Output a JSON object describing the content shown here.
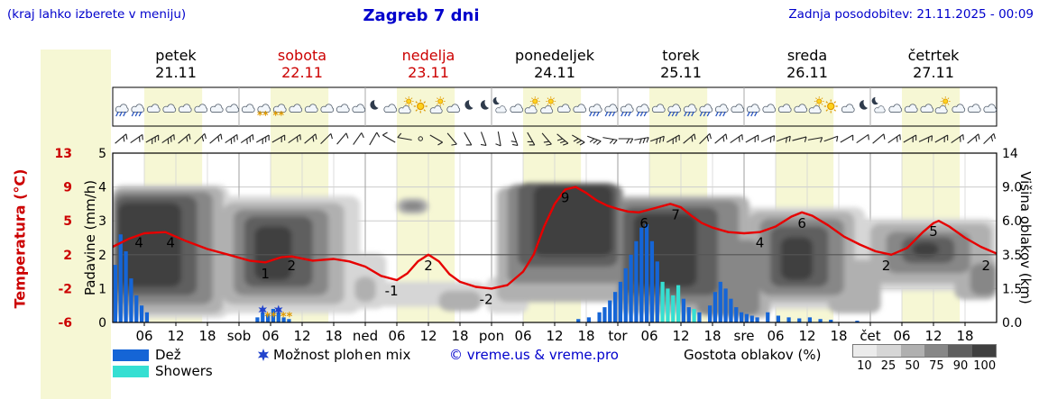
{
  "header": {
    "hint": "(kraj lahko izberete v meniju)",
    "title": "Zagreb 7 dni",
    "updated": "Zadnja posodobitev: 21.11.2025 - 00:09"
  },
  "axes": {
    "precip_label": "Padavine (mm/h)",
    "temp_label": "Temperatura (°C)",
    "cloud_label": "Višina oblakov (km)"
  },
  "legend": {
    "rain": "Dež",
    "showers": "Showers",
    "chance": "Možnost ploh",
    "frozen": "frozen mix",
    "copyright": "© vreme.us & vreme.pro",
    "cloud_title": "Gostota oblakov (%)",
    "cloud_steps": [
      10,
      25,
      50,
      75,
      90,
      100
    ]
  },
  "colors": {
    "accent_blue": "#0000cc",
    "red": "#cc0000",
    "temp_line": "#e60000",
    "rain": "#1565d6",
    "showers": "#35dfd2",
    "chance_star": "#2244cc",
    "frozen": "#e09a00",
    "day_band": "#f6f7d4",
    "cloud_levels": {
      "10": "#ebebeb",
      "25": "#d6d6d6",
      "50": "#b0b0b0",
      "75": "#878787",
      "90": "#5f5f5f",
      "100": "#3f3f3f"
    }
  },
  "chart_data": {
    "type": "meteogram",
    "title": "Zagreb 7 dni",
    "x_range_hours": [
      0,
      168
    ],
    "days": [
      {
        "name": "petek",
        "date": "21.11",
        "highlight": false
      },
      {
        "name": "sobota",
        "date": "22.11",
        "highlight": true
      },
      {
        "name": "nedelja",
        "date": "23.11",
        "highlight": true
      },
      {
        "name": "ponedeljek",
        "date": "24.11",
        "highlight": false
      },
      {
        "name": "torek",
        "date": "25.11",
        "highlight": false
      },
      {
        "name": "sreda",
        "date": "26.11",
        "highlight": false
      },
      {
        "name": "četrtek",
        "date": "27.11",
        "highlight": false
      }
    ],
    "x_tick_labels": [
      [
        6,
        "06"
      ],
      [
        12,
        "12"
      ],
      [
        18,
        "18"
      ],
      [
        24,
        "sob"
      ],
      [
        30,
        "06"
      ],
      [
        36,
        "12"
      ],
      [
        42,
        "18"
      ],
      [
        48,
        "ned"
      ],
      [
        54,
        "06"
      ],
      [
        60,
        "12"
      ],
      [
        66,
        "18"
      ],
      [
        72,
        "pon"
      ],
      [
        78,
        "06"
      ],
      [
        84,
        "12"
      ],
      [
        90,
        "18"
      ],
      [
        96,
        "tor"
      ],
      [
        102,
        "06"
      ],
      [
        108,
        "12"
      ],
      [
        114,
        "18"
      ],
      [
        120,
        "sre"
      ],
      [
        126,
        "06"
      ],
      [
        132,
        "12"
      ],
      [
        138,
        "18"
      ],
      [
        144,
        "čet"
      ],
      [
        150,
        "06"
      ],
      [
        156,
        "12"
      ],
      [
        162,
        "18"
      ]
    ],
    "temperature": {
      "unit": "°C",
      "axis_ticks": [
        13,
        9,
        5,
        2,
        -2,
        -6
      ],
      "series": [
        [
          0,
          2.7
        ],
        [
          3,
          3.4
        ],
        [
          6,
          3.9
        ],
        [
          10,
          4.0
        ],
        [
          14,
          3.2
        ],
        [
          18,
          2.5
        ],
        [
          22,
          2.0
        ],
        [
          26,
          1.3
        ],
        [
          29,
          1.1
        ],
        [
          32,
          1.7
        ],
        [
          34,
          1.8
        ],
        [
          38,
          1.3
        ],
        [
          42,
          1.5
        ],
        [
          45,
          1.2
        ],
        [
          48,
          0.6
        ],
        [
          51,
          -0.5
        ],
        [
          54,
          -1.0
        ],
        [
          56,
          -0.2
        ],
        [
          58,
          1.2
        ],
        [
          60,
          2.0
        ],
        [
          62,
          1.2
        ],
        [
          64,
          -0.3
        ],
        [
          66,
          -1.2
        ],
        [
          69,
          -1.8
        ],
        [
          72,
          -2.0
        ],
        [
          75,
          -1.6
        ],
        [
          78,
          0.0
        ],
        [
          80,
          2.0
        ],
        [
          82,
          4.5
        ],
        [
          84,
          7.0
        ],
        [
          86,
          8.7
        ],
        [
          88,
          9.0
        ],
        [
          90,
          8.3
        ],
        [
          92,
          7.4
        ],
        [
          94,
          6.8
        ],
        [
          96,
          6.4
        ],
        [
          98,
          6.1
        ],
        [
          100,
          6.0
        ],
        [
          103,
          6.5
        ],
        [
          106,
          7.0
        ],
        [
          108,
          6.6
        ],
        [
          110,
          5.6
        ],
        [
          112,
          4.8
        ],
        [
          114,
          4.4
        ],
        [
          117,
          4.0
        ],
        [
          120,
          3.9
        ],
        [
          123,
          4.0
        ],
        [
          126,
          4.5
        ],
        [
          129,
          5.5
        ],
        [
          131,
          6.0
        ],
        [
          133,
          5.6
        ],
        [
          136,
          4.6
        ],
        [
          139,
          3.6
        ],
        [
          142,
          2.9
        ],
        [
          145,
          2.3
        ],
        [
          148,
          2.0
        ],
        [
          151,
          2.6
        ],
        [
          154,
          4.0
        ],
        [
          156,
          4.8
        ],
        [
          157,
          5.0
        ],
        [
          159,
          4.5
        ],
        [
          162,
          3.5
        ],
        [
          165,
          2.7
        ],
        [
          168,
          2.1
        ]
      ],
      "point_labels": [
        [
          5,
          "4"
        ],
        [
          11,
          "4"
        ],
        [
          29,
          "1"
        ],
        [
          34,
          "2"
        ],
        [
          53,
          "-1"
        ],
        [
          60,
          "2"
        ],
        [
          71,
          "-2"
        ],
        [
          86,
          "9"
        ],
        [
          101,
          "6"
        ],
        [
          107,
          "7"
        ],
        [
          123,
          "4"
        ],
        [
          131,
          "6"
        ],
        [
          147,
          "2"
        ],
        [
          156,
          "5"
        ],
        [
          166,
          "2"
        ]
      ]
    },
    "precipitation": {
      "unit": "mm/h",
      "axis_ticks": [
        0,
        1,
        2,
        3,
        4,
        5
      ],
      "rain": [
        [
          0,
          1.7
        ],
        [
          1,
          2.6
        ],
        [
          2,
          2.1
        ],
        [
          3,
          1.3
        ],
        [
          4,
          0.8
        ],
        [
          5,
          0.5
        ],
        [
          6,
          0.3
        ],
        [
          27,
          0.15
        ],
        [
          28,
          0.3
        ],
        [
          29,
          0.25
        ],
        [
          30,
          0.4
        ],
        [
          31,
          0.3
        ],
        [
          32,
          0.15
        ],
        [
          33,
          0.1
        ],
        [
          88,
          0.1
        ],
        [
          90,
          0.15
        ],
        [
          92,
          0.3
        ],
        [
          93,
          0.45
        ],
        [
          94,
          0.65
        ],
        [
          95,
          0.9
        ],
        [
          96,
          1.2
        ],
        [
          97,
          1.6
        ],
        [
          98,
          2.0
        ],
        [
          99,
          2.4
        ],
        [
          100,
          2.8
        ],
        [
          101,
          2.9
        ],
        [
          102,
          2.4
        ],
        [
          103,
          1.8
        ],
        [
          108,
          0.7
        ],
        [
          109,
          0.45
        ],
        [
          111,
          0.3
        ],
        [
          113,
          0.5
        ],
        [
          114,
          0.9
        ],
        [
          115,
          1.2
        ],
        [
          116,
          1.0
        ],
        [
          117,
          0.7
        ],
        [
          118,
          0.45
        ],
        [
          119,
          0.3
        ],
        [
          120,
          0.25
        ],
        [
          121,
          0.2
        ],
        [
          122,
          0.15
        ],
        [
          124,
          0.3
        ],
        [
          126,
          0.2
        ],
        [
          128,
          0.15
        ],
        [
          130,
          0.12
        ],
        [
          132,
          0.15
        ],
        [
          134,
          0.1
        ],
        [
          136,
          0.08
        ],
        [
          141,
          0.05
        ]
      ],
      "showers": [
        [
          104,
          1.2
        ],
        [
          105,
          1.0
        ],
        [
          106,
          0.8
        ],
        [
          107,
          1.1
        ],
        [
          110,
          0.4
        ]
      ],
      "chance_markers": [
        28,
        31
      ],
      "frozen_markers": [
        29.5,
        32.5
      ]
    },
    "cloud_height_axis": {
      "unit": "km",
      "ticks": [
        "14",
        "9.0",
        "6.0",
        "3.5",
        "1.5",
        "0.0"
      ]
    },
    "cloud_density_blobs": [
      [
        0,
        22,
        0.2,
        9.3,
        25
      ],
      [
        0,
        21,
        0.4,
        9.0,
        50
      ],
      [
        0,
        19,
        0.8,
        8.6,
        75
      ],
      [
        0.5,
        16,
        1.2,
        8.2,
        90
      ],
      [
        1,
        13,
        1.6,
        7.6,
        100
      ],
      [
        18,
        47,
        0.4,
        8.2,
        25
      ],
      [
        21,
        44,
        0.8,
        7.6,
        50
      ],
      [
        23,
        41,
        1.2,
        7.0,
        75
      ],
      [
        25,
        38,
        1.6,
        6.4,
        90
      ],
      [
        27,
        34,
        2.0,
        5.6,
        100
      ],
      [
        44,
        52,
        0.6,
        3.6,
        25
      ],
      [
        46,
        50,
        0.9,
        2.2,
        50
      ],
      [
        50,
        71,
        0.7,
        1.9,
        25
      ],
      [
        54,
        60,
        6.6,
        8.0,
        50
      ],
      [
        55,
        59,
        6.9,
        7.7,
        75
      ],
      [
        62,
        70,
        0.5,
        1.4,
        50
      ],
      [
        71,
        79,
        0.4,
        2.2,
        25
      ],
      [
        73,
        97,
        0.9,
        9.0,
        50
      ],
      [
        75,
        97,
        1.8,
        9.4,
        75
      ],
      [
        77,
        96,
        2.8,
        9.6,
        90
      ],
      [
        80,
        95,
        3.4,
        9.2,
        100
      ],
      [
        96,
        121,
        0.4,
        8.2,
        50
      ],
      [
        96,
        119,
        0.8,
        7.8,
        75
      ],
      [
        97,
        115,
        1.2,
        7.2,
        90
      ],
      [
        99,
        111,
        1.6,
        6.6,
        100
      ],
      [
        111,
        123,
        0.3,
        4.6,
        75
      ],
      [
        115,
        125,
        0.2,
        2.8,
        50
      ],
      [
        119,
        143,
        0.6,
        7.2,
        25
      ],
      [
        121,
        141,
        0.9,
        6.8,
        50
      ],
      [
        123,
        139,
        1.2,
        6.2,
        75
      ],
      [
        125,
        136,
        1.6,
        5.6,
        90
      ],
      [
        127,
        133,
        2.0,
        4.8,
        100
      ],
      [
        136,
        146,
        0.4,
        3.2,
        50
      ],
      [
        141,
        168,
        1.4,
        6.2,
        25
      ],
      [
        144,
        167,
        1.8,
        5.8,
        50
      ],
      [
        147,
        163,
        2.4,
        5.2,
        75
      ],
      [
        150,
        160,
        3.0,
        4.8,
        90
      ],
      [
        152,
        157,
        3.4,
        4.4,
        100
      ],
      [
        160,
        168,
        1.0,
        3.4,
        50
      ],
      [
        163,
        168,
        1.2,
        3.0,
        75
      ]
    ],
    "weather_icons": [
      "cloud-rain",
      "cloud-rain",
      "cloud",
      "cloud",
      "cloud",
      "cloud",
      "cloud",
      "cloud",
      "cloud",
      "cloud-frozen",
      "cloud-frozen",
      "cloud",
      "cloud",
      "cloud",
      "cloud",
      "cloud",
      "moon",
      "cloud",
      "cloud-sun",
      "sun",
      "cloud-sun",
      "cloud",
      "moon",
      "moon",
      "moon-cloud",
      "cloud",
      "cloud-sun",
      "cloud-sun",
      "cloud",
      "cloud",
      "cloud-rain",
      "cloud-rain",
      "cloud-rain",
      "cloud-rain",
      "cloud",
      "cloud-rain",
      "cloud-rain",
      "cloud-rain",
      "cloud-rain",
      "cloud",
      "cloud-rain",
      "cloud",
      "cloud",
      "cloud",
      "cloud-sun",
      "sun",
      "cloud",
      "moon",
      "moon-cloud",
      "cloud",
      "cloud",
      "cloud",
      "cloud-sun",
      "cloud",
      "cloud",
      "cloud"
    ],
    "wind_barbs": [
      [
        50,
        10
      ],
      [
        55,
        10
      ],
      [
        60,
        15
      ],
      [
        55,
        15
      ],
      [
        50,
        10
      ],
      [
        45,
        10
      ],
      [
        50,
        10
      ],
      [
        55,
        15
      ],
      [
        55,
        15
      ],
      [
        60,
        15
      ],
      [
        60,
        10
      ],
      [
        55,
        10
      ],
      [
        50,
        10
      ],
      [
        45,
        5
      ],
      [
        40,
        5
      ],
      [
        35,
        5
      ],
      [
        30,
        5
      ],
      [
        300,
        5
      ],
      [
        280,
        5
      ],
      [
        0,
        0
      ],
      [
        120,
        5
      ],
      [
        140,
        5
      ],
      [
        150,
        5
      ],
      [
        160,
        5
      ],
      [
        170,
        5
      ],
      [
        160,
        10
      ],
      [
        150,
        10
      ],
      [
        140,
        10
      ],
      [
        130,
        15
      ],
      [
        120,
        15
      ],
      [
        110,
        15
      ],
      [
        100,
        10
      ],
      [
        90,
        10
      ],
      [
        80,
        15
      ],
      [
        70,
        15
      ],
      [
        60,
        15
      ],
      [
        50,
        10
      ],
      [
        45,
        10
      ],
      [
        50,
        10
      ],
      [
        55,
        10
      ],
      [
        60,
        10
      ],
      [
        65,
        10
      ],
      [
        70,
        10
      ],
      [
        75,
        5
      ],
      [
        80,
        5
      ],
      [
        70,
        5
      ],
      [
        60,
        5
      ],
      [
        55,
        5
      ],
      [
        50,
        5
      ],
      [
        55,
        10
      ],
      [
        60,
        10
      ],
      [
        65,
        10
      ],
      [
        60,
        10
      ],
      [
        55,
        10
      ],
      [
        50,
        10
      ],
      [
        45,
        10
      ]
    ]
  }
}
